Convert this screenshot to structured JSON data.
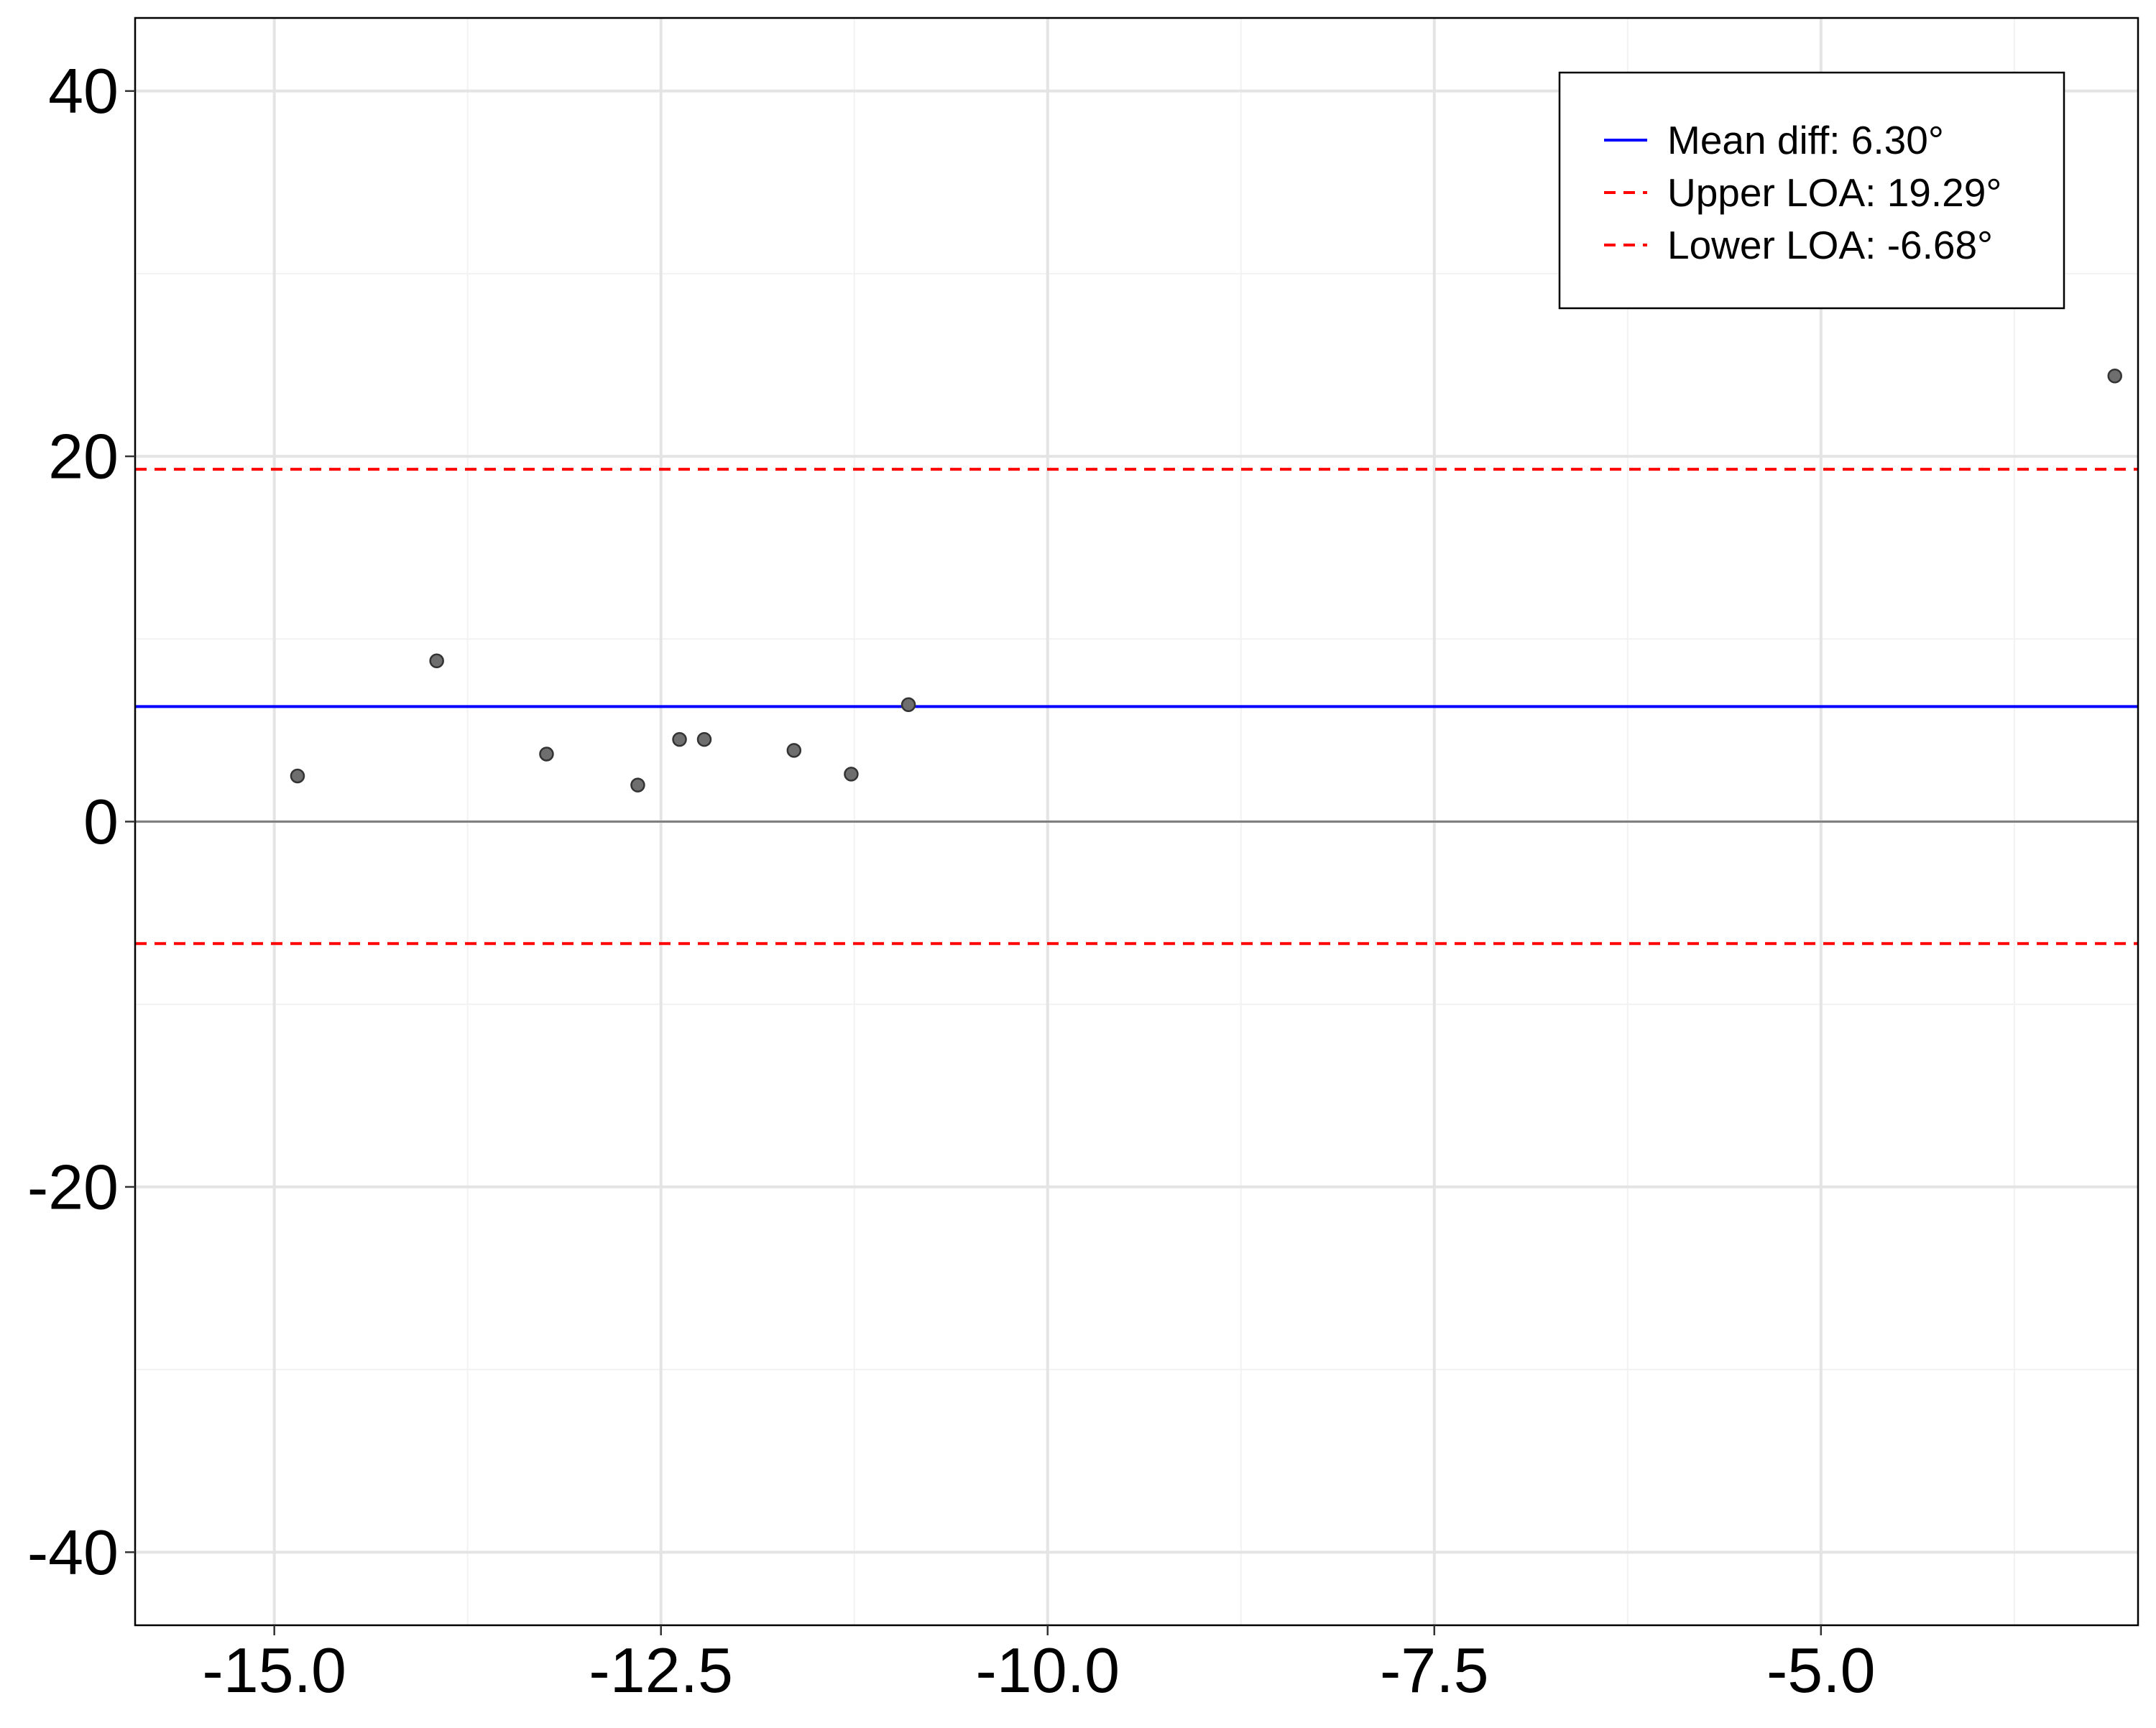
{
  "chart_data": {
    "type": "scatter",
    "title": "",
    "xlabel": "",
    "ylabel": "",
    "xlim": [
      -15.9,
      -2.95
    ],
    "ylim": [
      -44,
      44
    ],
    "x_ticks": [
      -15.0,
      -12.5,
      -10.0,
      -7.5,
      -5.0
    ],
    "x_tick_labels": [
      "-15.0",
      "-12.5",
      "-10.0",
      "-7.5",
      "-5.0"
    ],
    "x_minor_ticks": [
      -13.75,
      -11.25,
      -8.75,
      -6.25,
      -3.75
    ],
    "y_ticks": [
      -40,
      -20,
      0,
      20,
      40
    ],
    "y_tick_labels": [
      "-40",
      "-20",
      "0",
      "20",
      "40"
    ],
    "y_minor_ticks": [
      -30,
      -10,
      10,
      30
    ],
    "grid": true,
    "points": [
      {
        "x": -14.85,
        "y": 2.5
      },
      {
        "x": -13.95,
        "y": 8.8
      },
      {
        "x": -13.24,
        "y": 3.7
      },
      {
        "x": -12.65,
        "y": 2.0
      },
      {
        "x": -12.38,
        "y": 4.5
      },
      {
        "x": -12.22,
        "y": 4.5
      },
      {
        "x": -11.64,
        "y": 3.9
      },
      {
        "x": -11.27,
        "y": 2.6
      },
      {
        "x": -10.9,
        "y": 6.4
      },
      {
        "x": -3.1,
        "y": 24.4
      }
    ],
    "reference_lines": [
      {
        "name": "Mean diff: 6.30°",
        "y": 6.3,
        "style": "solid",
        "color": "#0000ff",
        "in_legend": true
      },
      {
        "name": "Upper LOA: 19.29°",
        "y": 19.29,
        "style": "dashed",
        "color": "#ff0000",
        "in_legend": true
      },
      {
        "name": "Lower LOA: -6.68°",
        "y": -6.68,
        "style": "dashed",
        "color": "#ff0000",
        "in_legend": true
      },
      {
        "name": "",
        "y": 0,
        "style": "solid",
        "color": "#808080",
        "in_legend": false
      }
    ],
    "legend_position": "top-right",
    "point_color": "#6e6e6e"
  }
}
